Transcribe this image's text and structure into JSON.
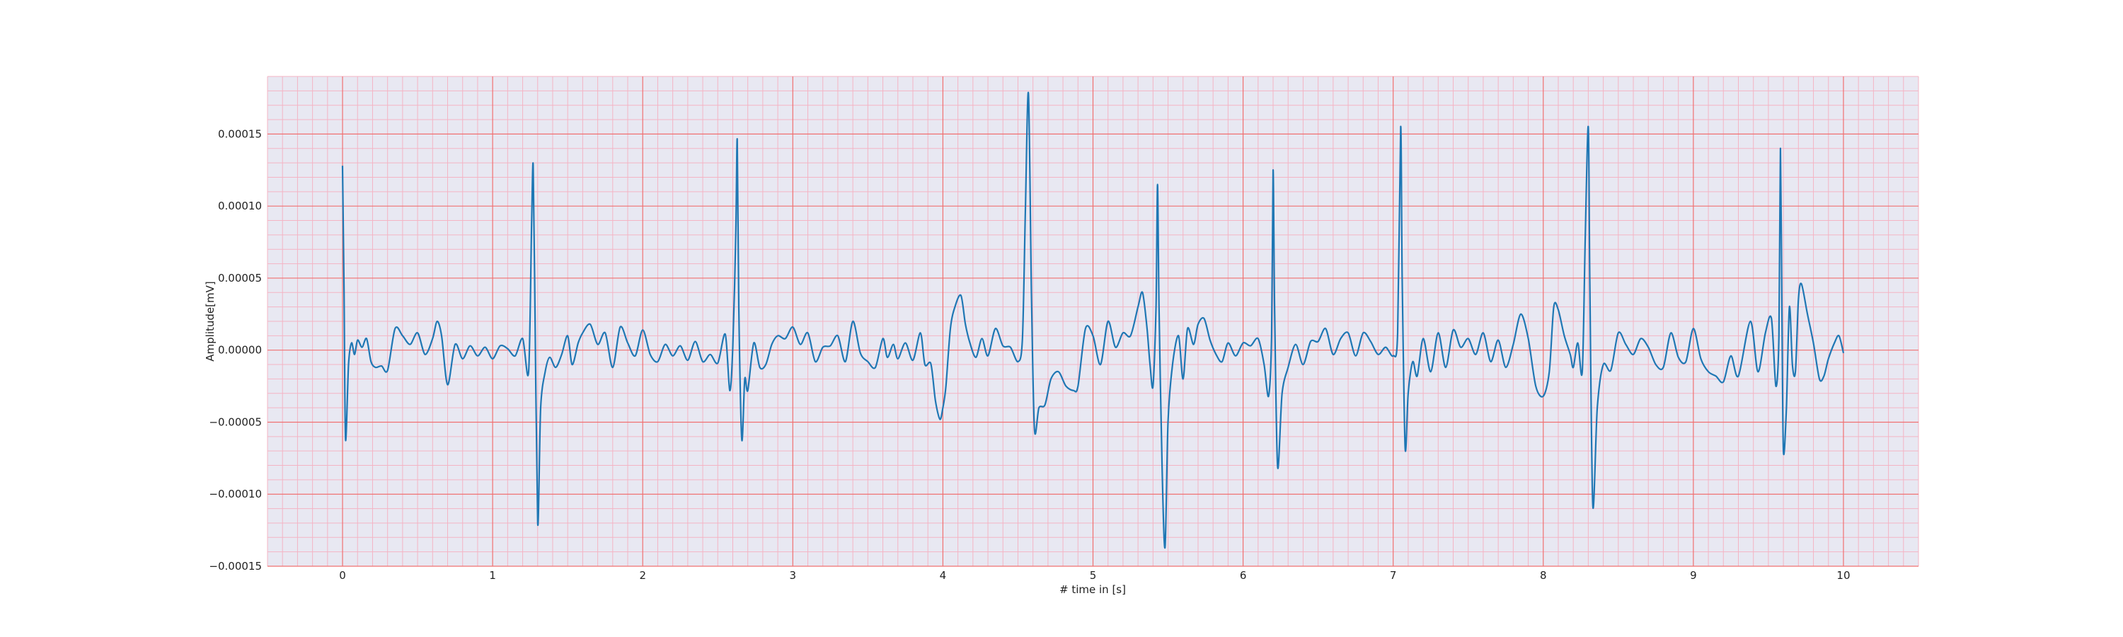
{
  "chart_data": {
    "type": "line",
    "title": "",
    "xlabel": "# time in [s]",
    "ylabel": "Amplitude[mV]",
    "xlim": [
      -0.5,
      10.5
    ],
    "ylim": [
      -0.00015,
      0.00019
    ],
    "xticks": [
      0,
      1,
      2,
      3,
      4,
      5,
      6,
      7,
      8,
      9,
      10
    ],
    "xtick_labels": [
      "0",
      "1",
      "2",
      "3",
      "4",
      "5",
      "6",
      "7",
      "8",
      "9",
      "10"
    ],
    "yticks": [
      -0.00015,
      -0.0001,
      -5e-05,
      0,
      5e-05,
      0.0001,
      0.00015
    ],
    "ytick_labels": [
      "−0.00015",
      "−0.00010",
      "−0.00005",
      "0.00000",
      "0.00005",
      "0.00010",
      "0.00015"
    ],
    "grid": "major and minor",
    "legend": "none",
    "colors": {
      "line": "#1f77b4",
      "background": "#e8e8f2",
      "major_grid": "#f07070",
      "minor_grid": "#f4b4c4"
    },
    "series": [
      {
        "values": [
          [
            0.0,
            0.000128
          ],
          [
            0.01,
            4e-05
          ],
          [
            0.02,
            -6.2e-05
          ],
          [
            0.04,
            -1e-05
          ],
          [
            0.06,
            5e-06
          ],
          [
            0.08,
            -3e-06
          ],
          [
            0.1,
            7e-06
          ],
          [
            0.13,
            2e-06
          ],
          [
            0.16,
            8e-06
          ],
          [
            0.19,
            -8e-06
          ],
          [
            0.22,
            -1.2e-05
          ],
          [
            0.26,
            -1.1e-05
          ],
          [
            0.3,
            -1.4e-05
          ],
          [
            0.35,
            1.5e-05
          ],
          [
            0.4,
            1e-05
          ],
          [
            0.45,
            4e-06
          ],
          [
            0.5,
            1.2e-05
          ],
          [
            0.55,
            -3e-06
          ],
          [
            0.6,
            8e-06
          ],
          [
            0.63,
            2e-05
          ],
          [
            0.66,
            1e-05
          ],
          [
            0.7,
            -2.4e-05
          ],
          [
            0.75,
            4e-06
          ],
          [
            0.8,
            -6e-06
          ],
          [
            0.85,
            3e-06
          ],
          [
            0.9,
            -4e-06
          ],
          [
            0.95,
            2e-06
          ],
          [
            1.0,
            -6e-06
          ],
          [
            1.05,
            3e-06
          ],
          [
            1.1,
            1e-06
          ],
          [
            1.15,
            -4e-06
          ],
          [
            1.2,
            8e-06
          ],
          [
            1.24,
            -1.5e-05
          ],
          [
            1.26,
            9e-05
          ],
          [
            1.27,
            0.000129
          ],
          [
            1.28,
            5e-05
          ],
          [
            1.3,
            -0.00012
          ],
          [
            1.32,
            -4e-05
          ],
          [
            1.35,
            -1.5e-05
          ],
          [
            1.38,
            -5e-06
          ],
          [
            1.42,
            -1.2e-05
          ],
          [
            1.46,
            -3e-06
          ],
          [
            1.5,
            1e-05
          ],
          [
            1.53,
            -1e-05
          ],
          [
            1.57,
            5e-06
          ],
          [
            1.6,
            1.2e-05
          ],
          [
            1.65,
            1.8e-05
          ],
          [
            1.7,
            4e-06
          ],
          [
            1.75,
            1.2e-05
          ],
          [
            1.8,
            -1.2e-05
          ],
          [
            1.85,
            1.6e-05
          ],
          [
            1.9,
            5e-06
          ],
          [
            1.95,
            -4e-06
          ],
          [
            2.0,
            1.4e-05
          ],
          [
            2.05,
            -3e-06
          ],
          [
            2.1,
            -8e-06
          ],
          [
            2.15,
            4e-06
          ],
          [
            2.2,
            -4e-06
          ],
          [
            2.25,
            3e-06
          ],
          [
            2.3,
            -7e-06
          ],
          [
            2.35,
            6e-06
          ],
          [
            2.4,
            -8e-06
          ],
          [
            2.45,
            -3e-06
          ],
          [
            2.5,
            -9e-06
          ],
          [
            2.55,
            1.1e-05
          ],
          [
            2.58,
            -2.8e-05
          ],
          [
            2.6,
            2e-06
          ],
          [
            2.62,
            8e-05
          ],
          [
            2.63,
            0.000146
          ],
          [
            2.64,
            3e-05
          ],
          [
            2.66,
            -6.2e-05
          ],
          [
            2.68,
            -2e-05
          ],
          [
            2.7,
            -2.8e-05
          ],
          [
            2.74,
            5e-06
          ],
          [
            2.78,
            -1.2e-05
          ],
          [
            2.82,
            -1e-05
          ],
          [
            2.86,
            4e-06
          ],
          [
            2.9,
            1e-05
          ],
          [
            2.95,
            8e-06
          ],
          [
            3.0,
            1.6e-05
          ],
          [
            3.05,
            4e-06
          ],
          [
            3.1,
            1.2e-05
          ],
          [
            3.15,
            -8e-06
          ],
          [
            3.2,
            2e-06
          ],
          [
            3.25,
            3e-06
          ],
          [
            3.3,
            1e-05
          ],
          [
            3.35,
            -8e-06
          ],
          [
            3.4,
            2e-05
          ],
          [
            3.45,
            -2e-06
          ],
          [
            3.5,
            -8e-06
          ],
          [
            3.55,
            -1.2e-05
          ],
          [
            3.6,
            8e-06
          ],
          [
            3.63,
            -5e-06
          ],
          [
            3.67,
            4e-06
          ],
          [
            3.7,
            -6e-06
          ],
          [
            3.75,
            5e-06
          ],
          [
            3.8,
            -7e-06
          ],
          [
            3.85,
            1.2e-05
          ],
          [
            3.88,
            -1e-05
          ],
          [
            3.92,
            -9.5e-06
          ],
          [
            3.95,
            -3.5e-05
          ],
          [
            3.98,
            -4.8e-05
          ],
          [
            4.0,
            -4e-05
          ],
          [
            4.02,
            -2.5e-05
          ],
          [
            4.05,
            1.5e-05
          ],
          [
            4.08,
            3e-05
          ],
          [
            4.12,
            3.8e-05
          ],
          [
            4.15,
            1.8e-05
          ],
          [
            4.18,
            5e-06
          ],
          [
            4.22,
            -5e-06
          ],
          [
            4.26,
            8e-06
          ],
          [
            4.3,
            -4e-06
          ],
          [
            4.35,
            1.5e-05
          ],
          [
            4.4,
            3e-06
          ],
          [
            4.45,
            2e-06
          ],
          [
            4.5,
            -8e-06
          ],
          [
            4.53,
            8e-06
          ],
          [
            4.55,
            0.0001
          ],
          [
            4.57,
            0.000178
          ],
          [
            4.59,
            4e-05
          ],
          [
            4.61,
            -5.5e-05
          ],
          [
            4.64,
            -4e-05
          ],
          [
            4.68,
            -3.8e-05
          ],
          [
            4.72,
            -2e-05
          ],
          [
            4.77,
            -1.5e-05
          ],
          [
            4.82,
            -2.5e-05
          ],
          [
            4.87,
            -2.8e-05
          ],
          [
            4.9,
            -2.5e-05
          ],
          [
            4.95,
            1.5e-05
          ],
          [
            5.0,
            1e-05
          ],
          [
            5.05,
            -1e-05
          ],
          [
            5.1,
            2e-05
          ],
          [
            5.15,
            2e-06
          ],
          [
            5.2,
            1.2e-05
          ],
          [
            5.25,
            1e-05
          ],
          [
            5.3,
            3e-05
          ],
          [
            5.33,
            4e-05
          ],
          [
            5.36,
            1.5e-05
          ],
          [
            5.38,
            -1e-05
          ],
          [
            5.4,
            -2.5e-05
          ],
          [
            5.42,
            3e-05
          ],
          [
            5.43,
            0.000115
          ],
          [
            5.44,
            3e-05
          ],
          [
            5.46,
            -8e-05
          ],
          [
            5.48,
            -0.000137
          ],
          [
            5.5,
            -5e-05
          ],
          [
            5.53,
            -1e-05
          ],
          [
            5.57,
            1e-05
          ],
          [
            5.6,
            -2e-05
          ],
          [
            5.63,
            1.5e-05
          ],
          [
            5.67,
            4e-06
          ],
          [
            5.7,
            1.8e-05
          ],
          [
            5.74,
            2.2e-05
          ],
          [
            5.78,
            7e-06
          ],
          [
            5.82,
            -3e-06
          ],
          [
            5.86,
            -8e-06
          ],
          [
            5.9,
            5e-06
          ],
          [
            5.95,
            -4e-06
          ],
          [
            6.0,
            5e-06
          ],
          [
            6.05,
            3e-06
          ],
          [
            6.1,
            8e-06
          ],
          [
            6.14,
            -1e-05
          ],
          [
            6.17,
            -3.2e-05
          ],
          [
            6.19,
            1e-05
          ],
          [
            6.2,
            0.000125
          ],
          [
            6.21,
            3e-05
          ],
          [
            6.23,
            -8.1e-05
          ],
          [
            6.26,
            -3e-05
          ],
          [
            6.3,
            -1.2e-05
          ],
          [
            6.35,
            4e-06
          ],
          [
            6.4,
            -1e-05
          ],
          [
            6.45,
            6e-06
          ],
          [
            6.5,
            6e-06
          ],
          [
            6.55,
            1.5e-05
          ],
          [
            6.6,
            -3e-06
          ],
          [
            6.65,
            8e-06
          ],
          [
            6.7,
            1.2e-05
          ],
          [
            6.75,
            -4e-06
          ],
          [
            6.8,
            1.2e-05
          ],
          [
            6.85,
            6e-06
          ],
          [
            6.9,
            -3e-06
          ],
          [
            6.95,
            2e-06
          ],
          [
            7.0,
            -4e-06
          ],
          [
            7.03,
            1.2e-05
          ],
          [
            7.05,
            0.000155
          ],
          [
            7.06,
            5e-05
          ],
          [
            7.08,
            -6.8e-05
          ],
          [
            7.1,
            -3e-05
          ],
          [
            7.13,
            -8e-06
          ],
          [
            7.16,
            -1.8e-05
          ],
          [
            7.2,
            8e-06
          ],
          [
            7.25,
            -1.5e-05
          ],
          [
            7.3,
            1.2e-05
          ],
          [
            7.35,
            -1.2e-05
          ],
          [
            7.4,
            1.4e-05
          ],
          [
            7.45,
            2e-06
          ],
          [
            7.5,
            8e-06
          ],
          [
            7.55,
            -3e-06
          ],
          [
            7.6,
            1.2e-05
          ],
          [
            7.65,
            -8e-06
          ],
          [
            7.7,
            7e-06
          ],
          [
            7.75,
            -1.2e-05
          ],
          [
            7.8,
            4e-06
          ],
          [
            7.85,
            2.5e-05
          ],
          [
            7.9,
            8e-06
          ],
          [
            7.95,
            -2.5e-05
          ],
          [
            8.0,
            -3.2e-05
          ],
          [
            8.04,
            -1.5e-05
          ],
          [
            8.07,
            3e-05
          ],
          [
            8.1,
            2.8e-05
          ],
          [
            8.14,
            1e-05
          ],
          [
            8.18,
            -3e-06
          ],
          [
            8.2,
            -1.2e-05
          ],
          [
            8.23,
            5e-06
          ],
          [
            8.26,
            -1.5e-05
          ],
          [
            8.28,
            8e-05
          ],
          [
            8.3,
            0.000155
          ],
          [
            8.31,
            5e-05
          ],
          [
            8.33,
            -0.000108
          ],
          [
            8.36,
            -4e-05
          ],
          [
            8.4,
            -1e-05
          ],
          [
            8.45,
            -1.4e-05
          ],
          [
            8.5,
            1.2e-05
          ],
          [
            8.55,
            4e-06
          ],
          [
            8.6,
            -3e-06
          ],
          [
            8.65,
            8e-06
          ],
          [
            8.7,
            2e-06
          ],
          [
            8.75,
            -1e-05
          ],
          [
            8.8,
            -1.2e-05
          ],
          [
            8.85,
            1.2e-05
          ],
          [
            8.9,
            -5e-06
          ],
          [
            8.95,
            -8e-06
          ],
          [
            9.0,
            1.5e-05
          ],
          [
            9.05,
            -6e-06
          ],
          [
            9.1,
            -1.5e-05
          ],
          [
            9.15,
            -1.8e-05
          ],
          [
            9.2,
            -2.2e-05
          ],
          [
            9.25,
            -4e-06
          ],
          [
            9.3,
            -1.8e-05
          ],
          [
            9.38,
            2e-05
          ],
          [
            9.43,
            -1.5e-05
          ],
          [
            9.48,
            1.2e-05
          ],
          [
            9.52,
            2.2e-05
          ],
          [
            9.55,
            -2.5e-05
          ],
          [
            9.57,
            1e-05
          ],
          [
            9.58,
            0.00014
          ],
          [
            9.59,
            3e-05
          ],
          [
            9.6,
            -7e-05
          ],
          [
            9.62,
            -4e-05
          ],
          [
            9.64,
            3e-05
          ],
          [
            9.66,
            -1e-05
          ],
          [
            9.68,
            -1.5e-05
          ],
          [
            9.7,
            3.5e-05
          ],
          [
            9.72,
            4.6e-05
          ],
          [
            9.76,
            2.5e-05
          ],
          [
            9.8,
            5e-06
          ],
          [
            9.84,
            -2e-05
          ],
          [
            9.87,
            -1.8e-05
          ],
          [
            9.9,
            -6e-06
          ],
          [
            9.94,
            5e-06
          ],
          [
            9.97,
            1e-05
          ],
          [
            10.0,
            -2e-06
          ]
        ]
      }
    ]
  }
}
